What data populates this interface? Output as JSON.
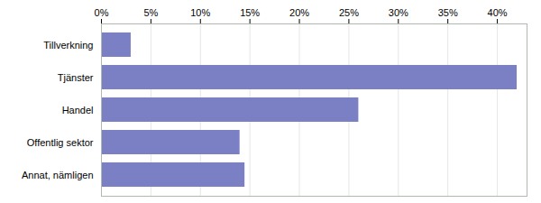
{
  "chart_data": {
    "type": "bar",
    "orientation": "horizontal",
    "categories": [
      "Annat, nämligen",
      "Offentlig sektor",
      "Handel",
      "Tjänster",
      "Tillverkning"
    ],
    "values": [
      14.5,
      14.0,
      26.0,
      42.0,
      3.0
    ],
    "color": "#7b7fc4",
    "xlim": [
      0,
      43
    ],
    "xticks": [
      {
        "value": 0,
        "label": "0%"
      },
      {
        "value": 5,
        "label": "5%"
      },
      {
        "value": 10,
        "label": "10%"
      },
      {
        "value": 15,
        "label": "15%"
      },
      {
        "value": 20,
        "label": "20%"
      },
      {
        "value": 25,
        "label": "25%"
      },
      {
        "value": 30,
        "label": "30%"
      },
      {
        "value": 35,
        "label": "35%"
      },
      {
        "value": 40,
        "label": "40%"
      }
    ],
    "grid": true
  }
}
